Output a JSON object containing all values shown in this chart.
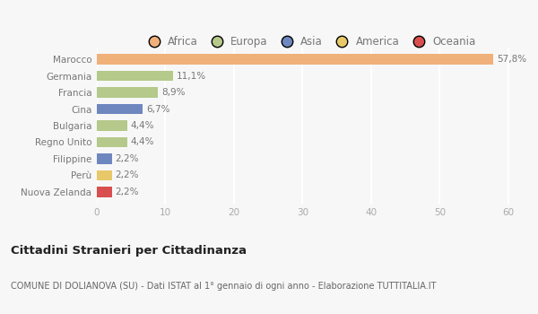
{
  "categories": [
    "Marocco",
    "Germania",
    "Francia",
    "Cina",
    "Bulgaria",
    "Regno Unito",
    "Filippine",
    "Perù",
    "Nuova Zelanda"
  ],
  "values": [
    57.8,
    11.1,
    8.9,
    6.7,
    4.4,
    4.4,
    2.2,
    2.2,
    2.2
  ],
  "labels": [
    "57,8%",
    "11,1%",
    "8,9%",
    "6,7%",
    "4,4%",
    "4,4%",
    "2,2%",
    "2,2%",
    "2,2%"
  ],
  "colors": [
    "#f0b07a",
    "#b5c98a",
    "#b5c98a",
    "#6e87bf",
    "#b5c98a",
    "#b5c98a",
    "#6e87bf",
    "#e8c96a",
    "#d94f4f"
  ],
  "legend_labels": [
    "Africa",
    "Europa",
    "Asia",
    "America",
    "Oceania"
  ],
  "legend_colors": [
    "#f0b07a",
    "#b5c98a",
    "#6e87bf",
    "#e8c96a",
    "#d94f4f"
  ],
  "xlim": [
    0,
    62
  ],
  "xticks": [
    0,
    10,
    20,
    30,
    40,
    50,
    60
  ],
  "title": "Cittadini Stranieri per Cittadinanza",
  "subtitle": "COMUNE DI DOLIANOVA (SU) - Dati ISTAT al 1° gennaio di ogni anno - Elaborazione TUTTITALIA.IT",
  "background_color": "#f7f7f7",
  "grid_color": "#ffffff",
  "bar_height": 0.6,
  "label_color": "#777777",
  "ytick_color": "#777777"
}
